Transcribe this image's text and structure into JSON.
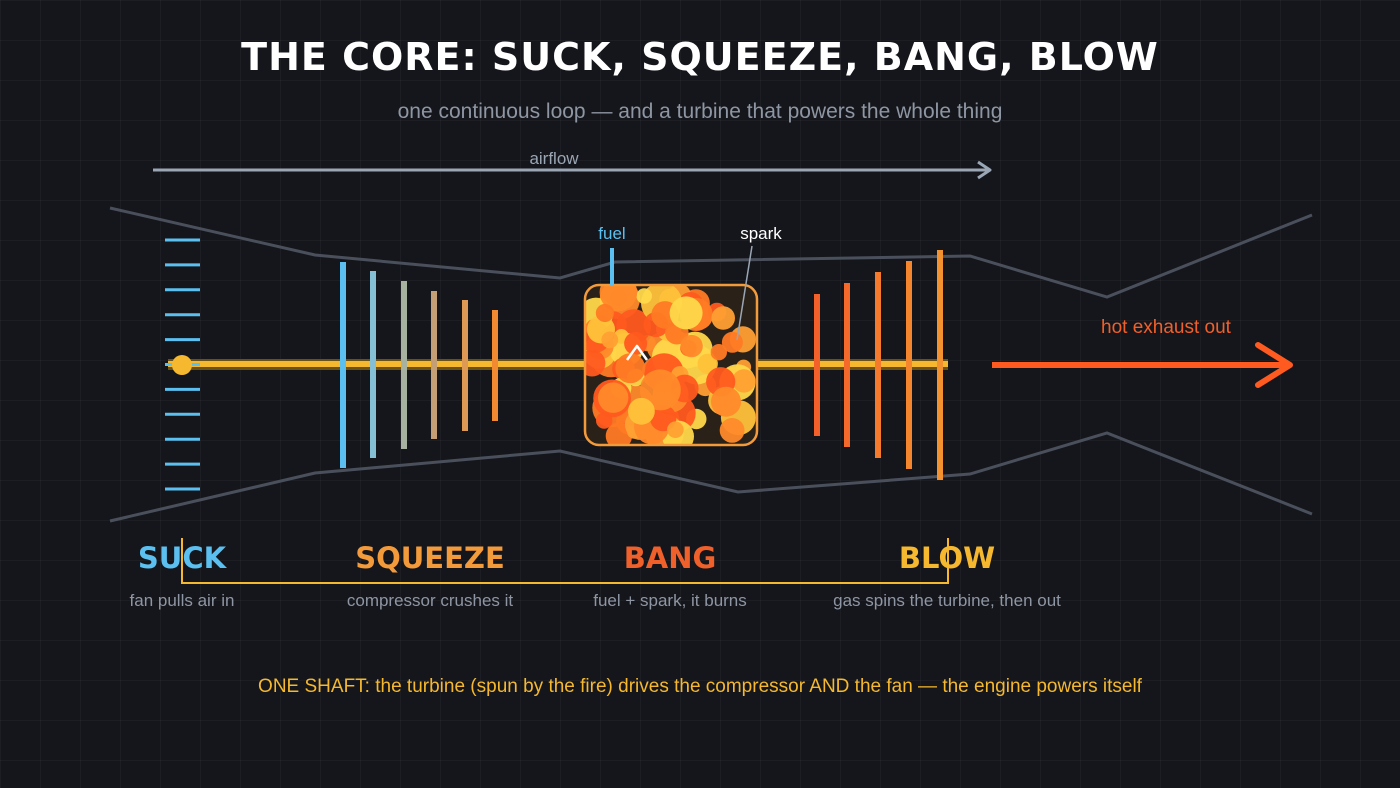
{
  "title": "THE CORE: SUCK, SQUEEZE, BANG, BLOW",
  "subtitle": "one continuous loop — and a turbine that powers the whole thing",
  "airflow_label": "airflow",
  "fuel_label": "fuel",
  "spark_label": "spark",
  "exhaust_label": "hot exhaust out",
  "stages": {
    "suck": {
      "name": "SUCK",
      "caption": "fan pulls air in",
      "color": "#5bc0f0"
    },
    "squeeze": {
      "name": "SQUEEZE",
      "caption": "compressor crushes it",
      "color": "#f39a3a"
    },
    "bang": {
      "name": "BANG",
      "caption": "fuel + spark, it burns",
      "color": "#f0602a"
    },
    "blow": {
      "name": "BLOW",
      "caption": "gas spins the turbine, then out",
      "color": "#f5b82e"
    }
  },
  "shaft_note": "ONE SHAFT: the turbine (spun by the fire) drives the compressor AND the fan — the engine powers itself",
  "colors": {
    "background": "#15161b",
    "shaft": "#f5b82e",
    "casing": "#4a4f5c",
    "airflow_arrow": "#9aa6b4",
    "fuel": "#5bc0f0",
    "exhaust": "#ff5a1f",
    "combustor_border": "#f39a3a"
  },
  "compressor_stage_count": 6,
  "turbine_stage_count": 5,
  "fan_blade_count": 11
}
